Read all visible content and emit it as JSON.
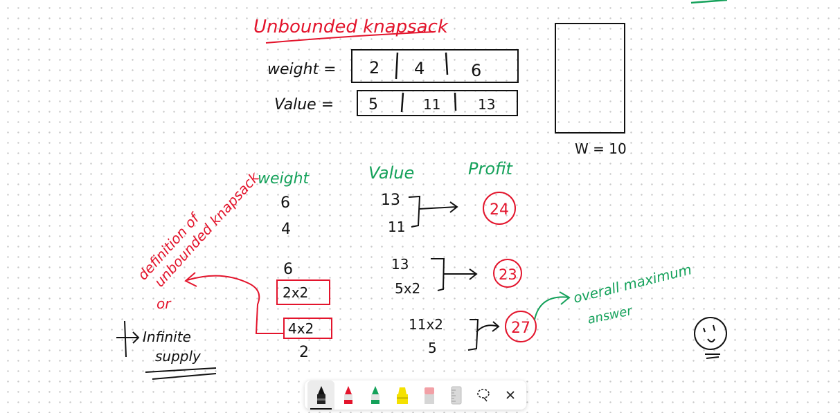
{
  "board": {
    "title": "Unbounded knapsack",
    "weight_label": "weight =",
    "value_label": "Value =",
    "weights": [
      "2",
      "4",
      "6"
    ],
    "values": [
      "5",
      "11",
      "13"
    ],
    "capacity_label": "W = 10",
    "col_weight": "weight",
    "col_value": "Value",
    "col_profit": "Profit",
    "group1": {
      "weights": [
        "6",
        "4"
      ],
      "values": [
        "13",
        "11"
      ],
      "profit": "24"
    },
    "group2": {
      "weights": [
        "6",
        "2x2"
      ],
      "values": [
        "13",
        "5x2"
      ],
      "profit": "23"
    },
    "group3": {
      "weights": [
        "4x2",
        "2"
      ],
      "values": [
        "11x2",
        "5"
      ],
      "profit": "27"
    },
    "note_definition_1": "definition of",
    "note_definition_2": "unbounded knapsack",
    "note_or": "or",
    "note_infinite_1": "Infinite",
    "note_infinite_2": "supply",
    "note_max_1": "overall maximum",
    "note_max_2": "answer"
  },
  "colors": {
    "black_ink": "#111111",
    "red_ink": "#e3142c",
    "green_ink": "#14a15a",
    "yellow_ink": "#f5e100"
  },
  "toolbar": {
    "tools": [
      "black-pen-icon",
      "red-pen-icon",
      "green-pen-icon",
      "yellow-highlighter-icon",
      "eraser-icon",
      "ruler-icon",
      "lasso-icon",
      "close-icon"
    ],
    "active_tool": "black-pen-icon"
  }
}
